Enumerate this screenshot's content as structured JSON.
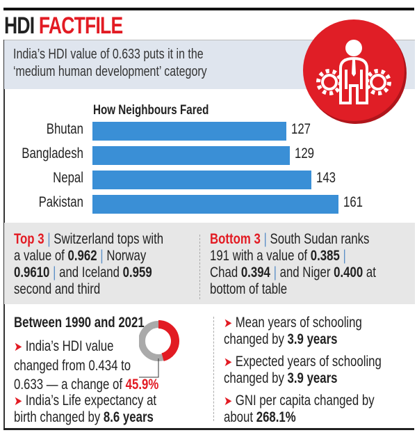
{
  "header": {
    "title_black": "HDI",
    "title_red": "FACTFILE"
  },
  "intro": {
    "line1": "India’s HDI value of 0.633 puts it in the",
    "line2": "‘medium human development’ category"
  },
  "badge": {
    "icon": "businessman-with-gears-icon"
  },
  "chart_data": {
    "type": "bar",
    "title": "How Neighbours Fared",
    "categories": [
      "Bhutan",
      "Bangladesh",
      "Nepal",
      "Pakistan"
    ],
    "values": [
      127,
      129,
      143,
      161
    ],
    "xlabel": "",
    "ylabel": "",
    "xlim": [
      0,
      170
    ],
    "orientation": "horizontal",
    "bar_color": "#3a8fd6"
  },
  "top3": {
    "label": "Top 3",
    "t1": "Switzerland tops with",
    "t2": "a value of",
    "v1": "0.962",
    "t3": "Norway",
    "v2": "0.9610",
    "t4": "and Iceland",
    "v3": "0.959",
    "t5": "second and third"
  },
  "bottom3": {
    "label": "Bottom 3",
    "t1": "South Sudan ranks",
    "t2": "191 with a value of",
    "v1": "0.385",
    "t3": "Chad",
    "v2": "0.394",
    "t4": "and Niger",
    "v3": "0.400",
    "t5": "at",
    "t6": "bottom of table"
  },
  "change": {
    "heading": "Between 1990 and 2021",
    "hdi": {
      "l1": "India’s HDI value",
      "l2": "changed from 0.434 to",
      "l3": "0.633 — a change of",
      "pct": "45.9%",
      "fraction": 0.459
    },
    "life": {
      "l1": "India’s Life expectancy at",
      "l2": "birth changed by",
      "v": "8.6 years"
    },
    "mean": {
      "l1": "Mean years of schooling",
      "l2": "changed by",
      "v": "3.9 years"
    },
    "expected": {
      "l1": "Expected years of schooling",
      "l2": "changed by",
      "v": "3.9 years"
    },
    "gni": {
      "l1": "GNI per capita changed by",
      "l2": "about",
      "v": "268.1%"
    }
  },
  "colors": {
    "red": "#e21b23",
    "blue": "#3a8fd6",
    "gray": "#e7e7e7",
    "intro_bg": "#dfe5ee"
  }
}
